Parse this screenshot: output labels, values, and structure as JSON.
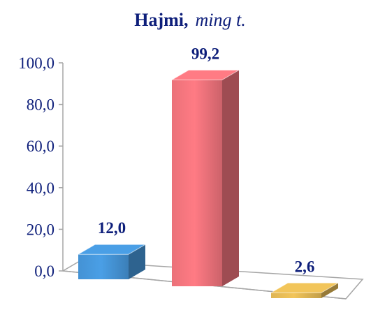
{
  "chart_data": {
    "type": "bar",
    "title": "Hajmi,",
    "title_unit": "ming t.",
    "categories": [
      "",
      "",
      ""
    ],
    "values": [
      12.0,
      99.2,
      2.6
    ],
    "value_labels": [
      "12,0",
      "99,2",
      "2,6"
    ],
    "ylim": [
      0,
      100
    ],
    "yticks": [
      0,
      20,
      40,
      60,
      80,
      100
    ],
    "ytick_labels": [
      "0,0",
      "20,0",
      "40,0",
      "60,0",
      "80,0",
      "100,0"
    ],
    "xlabel": "",
    "ylabel": "",
    "grid": false,
    "legend": "none",
    "colors": {
      "bars": [
        "#4a9fe6",
        "#ff7b84",
        "#f2c55a"
      ],
      "text": "#0d1e7a",
      "axis": "#a6a6a6"
    }
  }
}
